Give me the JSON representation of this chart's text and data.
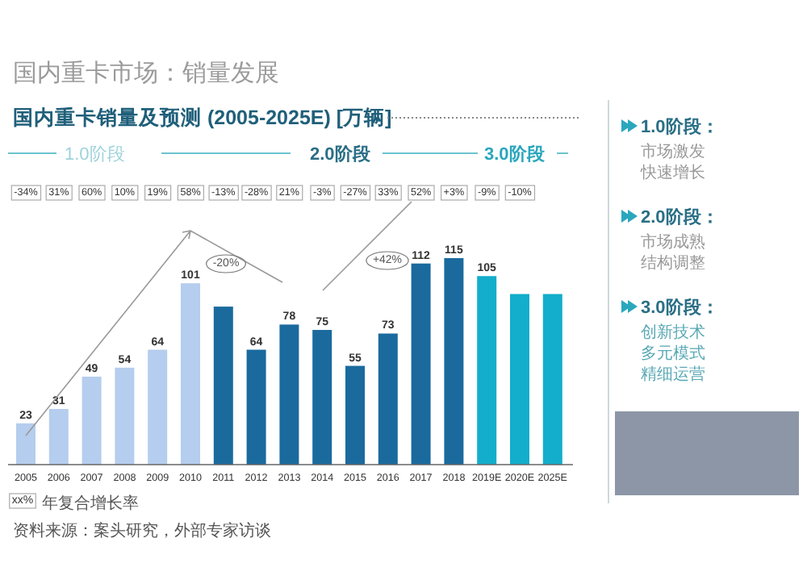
{
  "chart_data": {
    "type": "bar",
    "title": "国内重卡市场：销量发展",
    "subtitle": "国内重卡销量及预测 (2005-2025E) [万辆]",
    "categories": [
      "2005",
      "2006",
      "2007",
      "2008",
      "2009",
      "2010",
      "2011",
      "2012",
      "2013",
      "2014",
      "2015",
      "2016",
      "2017",
      "2018",
      "2019E",
      "2020E",
      "2025E"
    ],
    "values": [
      23,
      31,
      49,
      54,
      64,
      101,
      88,
      64,
      78,
      75,
      55,
      73,
      112,
      115,
      105,
      95,
      95
    ],
    "value_labels": [
      "23",
      "31",
      "49",
      "54",
      "64",
      "101",
      null,
      "64",
      "78",
      "75",
      "55",
      "73",
      "112",
      "115",
      "105",
      null,
      null
    ],
    "colors": [
      "#b5cdee",
      "#b5cdee",
      "#b5cdee",
      "#b5cdee",
      "#b5cdee",
      "#b5cdee",
      "#1a6a9e",
      "#1a6a9e",
      "#1a6a9e",
      "#1a6a9e",
      "#1a6a9e",
      "#1a6a9e",
      "#1a6a9e",
      "#1a6a9e",
      "#12aecb",
      "#12aecb",
      "#12aecb"
    ],
    "annotations": [
      "-34%",
      "31%",
      "60%",
      "10%",
      "19%",
      "58%",
      "-13%",
      "-28%",
      "21%",
      "-3%",
      "-27%",
      "33%",
      "52%",
      "+3%",
      "-9%",
      "-10%",
      "1.0阶段",
      "2.0阶段",
      "3.0阶段",
      "-20%",
      "+42%",
      "xx%",
      "年复合增长率",
      "资料来源：案头研究，外部专家访谈",
      "1.0阶段：",
      "市场激发",
      "快速增长",
      "2.0阶段：",
      "市场成熟",
      "结构调整",
      "3.0阶段：",
      "创新技术",
      "多元模式",
      "精细运营"
    ]
  }
}
